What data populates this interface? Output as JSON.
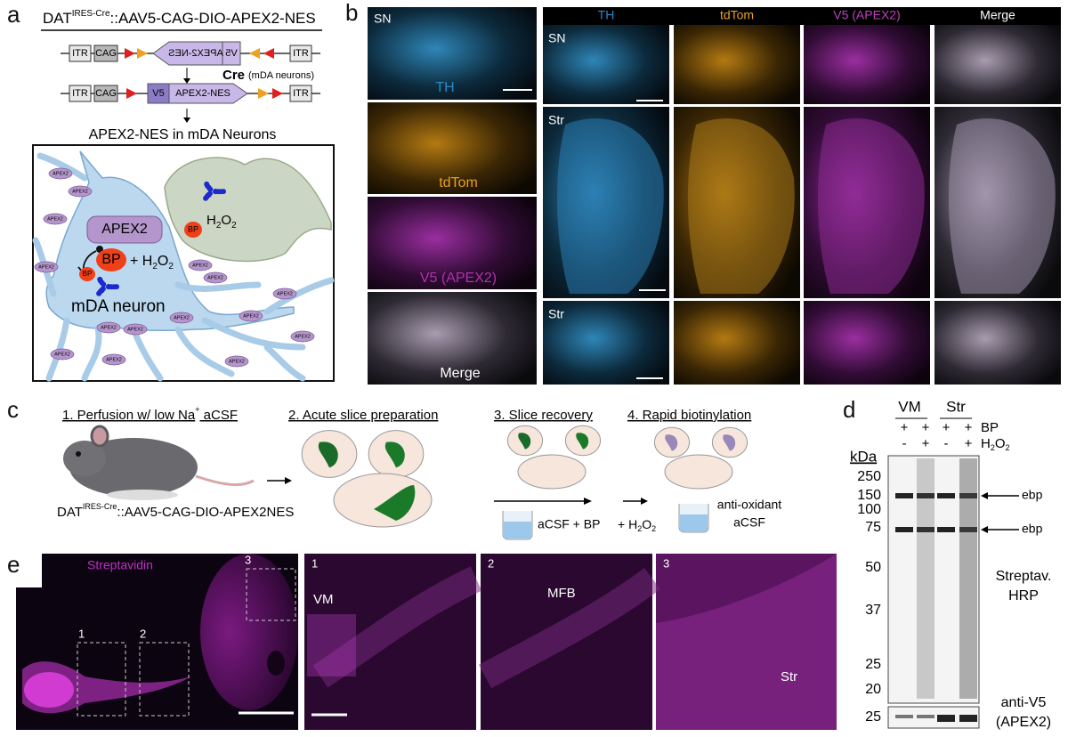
{
  "panel_a": {
    "label": "a",
    "construct": {
      "prefix": "DAT",
      "sup": "IRES-Cre",
      "suffix": "::AAV5-CAG-DIO-APEX2-NES"
    },
    "inverted_row": {
      "itr_left": "ITR",
      "cag": "CAG",
      "apex2_nes": "APEX2-NES",
      "v5": "V5",
      "itr_right": "ITR"
    },
    "recombinase": {
      "name": "Cre",
      "note": "(mDA neurons)"
    },
    "recombined_row": {
      "itr_left": "ITR",
      "cag": "CAG",
      "v5": "V5",
      "apex2_nes": "APEX2-NES",
      "itr_right": "ITR"
    },
    "result": "APEX2-NES in mDA Neurons",
    "diagram": {
      "apex2_tag": "APEX2",
      "apex2_large": "APEX2",
      "h2o2": {
        "h": "H",
        "sub1": "2",
        "o": "O",
        "sub2": "2"
      },
      "bp": "BP",
      "reaction": {
        "bp": "BP",
        "plus_h": "+ H",
        "sub1": "2",
        "o": "O",
        "sub2": "2"
      },
      "bp_small": "BP",
      "neuron": "mDA neuron"
    }
  },
  "panel_b": {
    "label": "b",
    "left_column": {
      "region": "SN",
      "th": "TH",
      "tdtom": "tdTom",
      "v5": "V5 (APEX2)",
      "merge": "Merge"
    },
    "headers": [
      "TH",
      "tdTom",
      "V5 (APEX2)",
      "Merge"
    ],
    "rows": [
      "SN",
      "Str",
      "Str"
    ]
  },
  "panel_c": {
    "label": "c",
    "step1": {
      "text": "1. Perfusion w/ low Na",
      "sup": "+",
      "text2": " aCSF"
    },
    "step2": "2. Acute slice preparation",
    "step3": "3. Slice recovery",
    "step4": "4. Rapid biotinylation",
    "mouse": {
      "prefix": "DAT",
      "sup": "IRES-Cre",
      "suffix": "::AAV5-CAG-DIO-APEX2NES"
    },
    "recovery_buffer": "aCSF + BP",
    "h2o2": {
      "text": "+ H",
      "sub1": "2",
      "o": "O",
      "sub2": "2"
    },
    "final_buffer": [
      "anti-oxidant",
      "aCSF"
    ]
  },
  "panel_d": {
    "label": "d",
    "groups": [
      "VM",
      "Str"
    ],
    "bp": "BP",
    "h2o2": {
      "h": "H",
      "sub1": "2",
      "o": "O",
      "sub2": "2"
    },
    "bp_signs": [
      "+",
      "+",
      "+",
      "+"
    ],
    "h2o2_signs": [
      "-",
      "+",
      "-",
      "+"
    ],
    "kda": "kDa",
    "markers": [
      "250",
      "150",
      "100",
      "75",
      "50",
      "37",
      "25",
      "20"
    ],
    "ebp": "ebp",
    "streptavidin": [
      "Streptav.",
      "HRP"
    ],
    "v5_marker": "25",
    "v5_label": [
      "anti-V5",
      "(APEX2)"
    ]
  },
  "panel_e": {
    "label": "e",
    "stain": "Streptavidin",
    "boxes": [
      "1",
      "2",
      "3"
    ],
    "insets": [
      {
        "number": "1",
        "region": "VM"
      },
      {
        "number": "2",
        "region": "MFB"
      },
      {
        "number": "3",
        "region": "Str"
      }
    ]
  }
}
